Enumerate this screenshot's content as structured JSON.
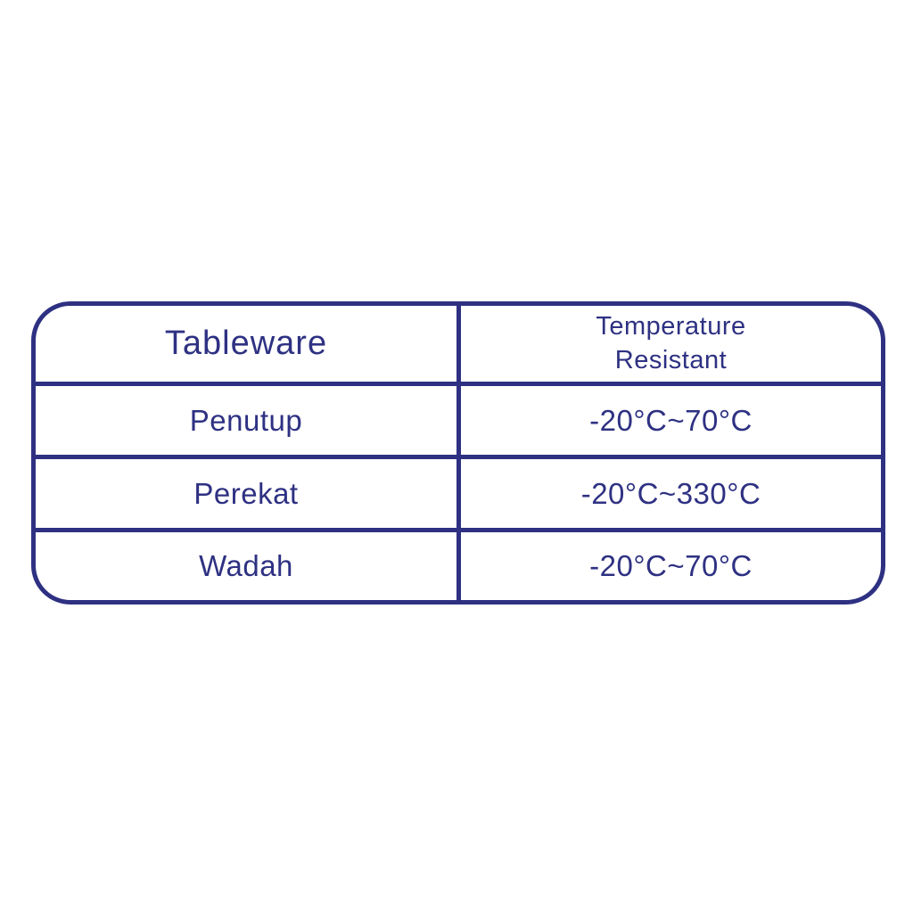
{
  "colors": {
    "accent": "#2e3182",
    "background": "#ffffff"
  },
  "table": {
    "header": {
      "tableware": "Tableware",
      "temperature": "Temperature\nResistant"
    },
    "rows": [
      {
        "name": "Penutup",
        "temp": "-20°C~70°C"
      },
      {
        "name": "Perekat",
        "temp": "-20°C~330°C"
      },
      {
        "name": "Wadah",
        "temp": "-20°C~70°C"
      }
    ]
  },
  "chart_data": {
    "type": "table",
    "columns": [
      "Tableware",
      "Temperature Resistant"
    ],
    "rows": [
      [
        "Penutup",
        "-20°C~70°C"
      ],
      [
        "Perekat",
        "-20°C~330°C"
      ],
      [
        "Wadah",
        "-20°C~70°C"
      ]
    ],
    "title": "",
    "layout_hints": {
      "rounded_outer_border": true,
      "border_color": "#2e3182",
      "text_color": "#2e3182",
      "background": "#ffffff",
      "column_split": "50/50"
    }
  }
}
